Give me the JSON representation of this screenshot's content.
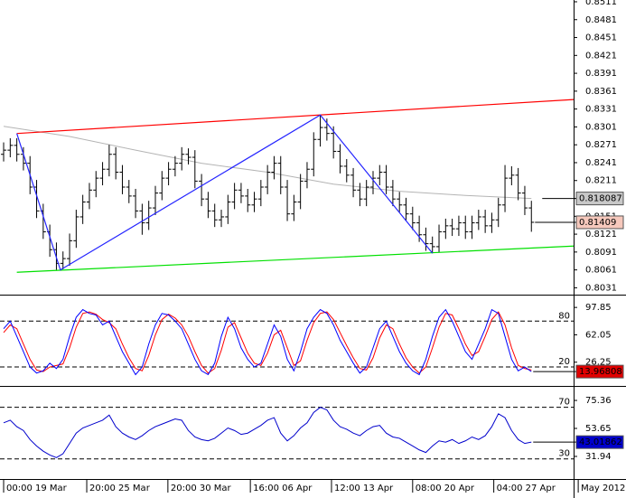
{
  "chart_data": [
    {
      "type": "ohlc",
      "xlim": [
        -0.55,
        86.4
      ],
      "xticks": [
        {
          "value": 0,
          "label": "00:00 19 Mar"
        },
        {
          "value": 12.6,
          "label": "20:00 25 Mar"
        },
        {
          "value": 24.9,
          "label": "20:00 30 Mar"
        },
        {
          "value": 37.4,
          "label": "16:00 06 Apr"
        },
        {
          "value": 49.7,
          "label": "12:00 13 Apr"
        },
        {
          "value": 62,
          "label": "08:00 20 Apr"
        },
        {
          "value": 74.3,
          "label": "04:00 27 Apr"
        },
        {
          "value": 87.1,
          "label": "May 2012"
        }
      ],
      "ylim": [
        0.8021,
        0.8514
      ],
      "yticks": [
        0.8511,
        0.8481,
        0.8451,
        0.8421,
        0.8391,
        0.8361,
        0.8331,
        0.8301,
        0.8271,
        0.8241,
        0.8211,
        0.8181,
        0.8151,
        0.8121,
        0.8091,
        0.8061,
        0.8031
      ],
      "color": "#000000",
      "close_box": "#f6c8bc",
      "open": [
        0.8255,
        0.8262,
        0.827,
        0.8255,
        0.824,
        0.82,
        0.816,
        0.8125,
        0.8095,
        0.8072,
        0.808,
        0.811,
        0.815,
        0.8175,
        0.8195,
        0.8215,
        0.823,
        0.8255,
        0.8225,
        0.82,
        0.8185,
        0.816,
        0.814,
        0.8165,
        0.819,
        0.8215,
        0.823,
        0.824,
        0.8255,
        0.825,
        0.821,
        0.818,
        0.816,
        0.8145,
        0.815,
        0.8175,
        0.8195,
        0.8185,
        0.817,
        0.818,
        0.82,
        0.8225,
        0.824,
        0.82,
        0.8155,
        0.8175,
        0.821,
        0.823,
        0.828,
        0.83,
        0.829,
        0.826,
        0.8235,
        0.822,
        0.8195,
        0.818,
        0.82,
        0.8215,
        0.8225,
        0.82,
        0.818,
        0.817,
        0.8155,
        0.814,
        0.812,
        0.8105,
        0.81,
        0.8125,
        0.8135,
        0.813,
        0.814,
        0.8125,
        0.814,
        0.815,
        0.8135,
        0.8145,
        0.817,
        0.8215,
        0.822,
        0.819,
        0.8165
      ],
      "high": [
        0.8275,
        0.8282,
        0.8282,
        0.8267,
        0.8252,
        0.8212,
        0.8172,
        0.8137,
        0.8107,
        0.8092,
        0.8122,
        0.8162,
        0.8187,
        0.8207,
        0.8227,
        0.8242,
        0.8271,
        0.8267,
        0.8237,
        0.8212,
        0.8197,
        0.8172,
        0.8177,
        0.8202,
        0.8227,
        0.8242,
        0.8252,
        0.8267,
        0.8265,
        0.8262,
        0.8222,
        0.8192,
        0.8172,
        0.8162,
        0.8187,
        0.8207,
        0.8207,
        0.8197,
        0.8192,
        0.8212,
        0.8237,
        0.8252,
        0.8252,
        0.8212,
        0.8187,
        0.8222,
        0.8242,
        0.8292,
        0.8321,
        0.8315,
        0.8302,
        0.8272,
        0.8247,
        0.8232,
        0.8207,
        0.8212,
        0.8227,
        0.8237,
        0.8237,
        0.8212,
        0.8192,
        0.8182,
        0.8167,
        0.8152,
        0.8132,
        0.8117,
        0.8137,
        0.8147,
        0.8147,
        0.8152,
        0.8152,
        0.8152,
        0.8162,
        0.8162,
        0.8157,
        0.8182,
        0.8237,
        0.8235,
        0.8232,
        0.8202,
        0.8177
      ],
      "low": [
        0.8243,
        0.825,
        0.8243,
        0.8228,
        0.8188,
        0.8148,
        0.8113,
        0.8083,
        0.8061,
        0.8062,
        0.8068,
        0.8098,
        0.8138,
        0.8163,
        0.8183,
        0.8203,
        0.8218,
        0.8213,
        0.8188,
        0.8173,
        0.8148,
        0.812,
        0.8128,
        0.8153,
        0.8178,
        0.8203,
        0.8218,
        0.8228,
        0.8238,
        0.8198,
        0.8168,
        0.8148,
        0.8133,
        0.8133,
        0.8138,
        0.8163,
        0.8173,
        0.8158,
        0.8158,
        0.8168,
        0.8188,
        0.8213,
        0.8188,
        0.8143,
        0.8143,
        0.8163,
        0.8198,
        0.8218,
        0.8268,
        0.8278,
        0.8248,
        0.8223,
        0.8208,
        0.8183,
        0.8168,
        0.8168,
        0.8188,
        0.8203,
        0.8188,
        0.8168,
        0.8158,
        0.8143,
        0.8128,
        0.8108,
        0.8093,
        0.8089,
        0.809,
        0.8113,
        0.8118,
        0.8118,
        0.8113,
        0.8113,
        0.8128,
        0.8123,
        0.8123,
        0.8133,
        0.8158,
        0.8203,
        0.8178,
        0.8153,
        0.8125
      ],
      "close": [
        0.8262,
        0.827,
        0.8255,
        0.824,
        0.82,
        0.816,
        0.8125,
        0.8095,
        0.8072,
        0.808,
        0.811,
        0.815,
        0.8175,
        0.8195,
        0.8215,
        0.823,
        0.8255,
        0.8225,
        0.82,
        0.8185,
        0.816,
        0.814,
        0.8165,
        0.819,
        0.8215,
        0.823,
        0.824,
        0.8255,
        0.825,
        0.821,
        0.818,
        0.816,
        0.8145,
        0.815,
        0.8175,
        0.8195,
        0.8185,
        0.817,
        0.818,
        0.82,
        0.8225,
        0.824,
        0.82,
        0.8155,
        0.8175,
        0.821,
        0.823,
        0.828,
        0.83,
        0.829,
        0.826,
        0.8235,
        0.822,
        0.8195,
        0.818,
        0.82,
        0.8215,
        0.8225,
        0.82,
        0.818,
        0.817,
        0.8155,
        0.814,
        0.812,
        0.8105,
        0.81,
        0.8125,
        0.8135,
        0.813,
        0.814,
        0.8125,
        0.814,
        0.815,
        0.8135,
        0.8145,
        0.817,
        0.8215,
        0.822,
        0.819,
        0.8165,
        0.81409
      ],
      "ma": {
        "color": "#b4b4b4",
        "box": "#c8c8c8",
        "x": [
          0,
          10,
          20,
          30,
          40,
          50,
          60,
          70,
          80
        ],
        "values": [
          0.8302,
          0.8285,
          0.8262,
          0.824,
          0.8225,
          0.8205,
          0.8193,
          0.8186,
          0.818087
        ]
      },
      "lines": [
        {
          "color": "#ff0000",
          "x": [
            2,
            86.4
          ],
          "values": [
            0.829,
            0.8347
          ]
        },
        {
          "color": "#00e000",
          "x": [
            2,
            86.4
          ],
          "values": [
            0.8057,
            0.8101
          ]
        },
        {
          "color": "#2424ff",
          "x": [
            2,
            8.6,
            48,
            65
          ],
          "values": [
            0.829,
            0.8061,
            0.8321,
            0.8089
          ]
        }
      ]
    },
    {
      "type": "line",
      "ylim": [
        -3.6,
        113.4
      ],
      "yticks": [
        97.85,
        62.05,
        26.25
      ],
      "levels": [
        80,
        20
      ],
      "series": [
        {
          "color": "#ff0000",
          "values": [
            65,
            75,
            70,
            50,
            30,
            16,
            14,
            20,
            22,
            24,
            45,
            72,
            90,
            92,
            89,
            82,
            78,
            70,
            50,
            32,
            18,
            15,
            35,
            62,
            82,
            89,
            84,
            75,
            60,
            40,
            22,
            12,
            18,
            42,
            72,
            78,
            58,
            38,
            25,
            22,
            38,
            62,
            68,
            45,
            22,
            28,
            55,
            78,
            90,
            92,
            82,
            65,
            48,
            32,
            18,
            16,
            32,
            58,
            75,
            70,
            50,
            32,
            20,
            12,
            20,
            45,
            72,
            90,
            88,
            70,
            50,
            35,
            40,
            60,
            82,
            92,
            75,
            45,
            22,
            18,
            16
          ]
        },
        {
          "color": "#0000ff",
          "box": "#e00000",
          "values": [
            70,
            80,
            60,
            40,
            20,
            12,
            15,
            25,
            18,
            30,
            60,
            85,
            95,
            90,
            88,
            75,
            80,
            60,
            40,
            25,
            10,
            20,
            50,
            75,
            90,
            88,
            80,
            70,
            50,
            30,
            15,
            10,
            25,
            60,
            85,
            70,
            45,
            30,
            20,
            25,
            50,
            75,
            60,
            30,
            15,
            40,
            70,
            85,
            95,
            90,
            75,
            55,
            40,
            25,
            12,
            20,
            45,
            70,
            80,
            60,
            40,
            25,
            15,
            10,
            30,
            60,
            85,
            95,
            80,
            60,
            40,
            30,
            50,
            70,
            95,
            90,
            60,
            30,
            15,
            20,
            13.96808
          ]
        }
      ]
    },
    {
      "type": "line",
      "ylim": [
        14.4,
        85.9
      ],
      "yticks": [
        75.36,
        53.65,
        31.94
      ],
      "levels": [
        70,
        30
      ],
      "series": [
        {
          "color": "#0000cc",
          "box": "#0000cc",
          "values": [
            58,
            60,
            55,
            52,
            45,
            40,
            36,
            33,
            31,
            34,
            42,
            50,
            54,
            56,
            58,
            60,
            64,
            55,
            50,
            47,
            45,
            48,
            52,
            55,
            57,
            59,
            61,
            60,
            52,
            47,
            45,
            44,
            46,
            50,
            54,
            52,
            49,
            50,
            53,
            56,
            60,
            62,
            50,
            44,
            48,
            54,
            58,
            66,
            70,
            68,
            60,
            55,
            53,
            50,
            48,
            52,
            55,
            56,
            50,
            47,
            46,
            43,
            40,
            37,
            35,
            40,
            44,
            43,
            45,
            42,
            44,
            47,
            45,
            48,
            55,
            65,
            62,
            52,
            45,
            42,
            43.01862
          ]
        }
      ]
    }
  ]
}
